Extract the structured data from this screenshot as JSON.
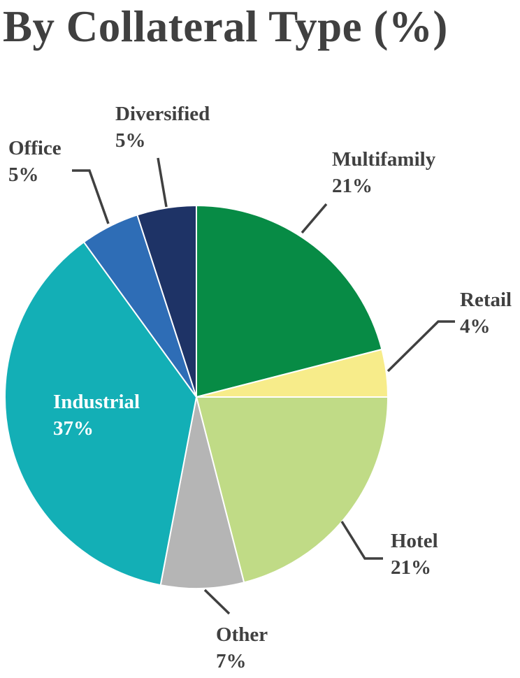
{
  "title": "By Collateral Type (%)",
  "chart_data": {
    "type": "pie",
    "title": "By Collateral Type (%)",
    "start": "12 o'clock, clockwise",
    "label_color": "#404040",
    "slices": [
      {
        "name": "Multifamily",
        "value": 21,
        "display": "21%",
        "color": "#078B45",
        "label_color": "#404040"
      },
      {
        "name": "Retail",
        "value": 4,
        "display": "4%",
        "color": "#F7EC8A",
        "label_color": "#404040"
      },
      {
        "name": "Hotel",
        "value": 21,
        "display": "21%",
        "color": "#C0DB86",
        "label_color": "#404040"
      },
      {
        "name": "Other",
        "value": 7,
        "display": "7%",
        "color": "#B5B5B5",
        "label_color": "#404040"
      },
      {
        "name": "Industrial",
        "value": 37,
        "display": "37%",
        "color": "#13AFB6",
        "label_color": "#FFFFFF"
      },
      {
        "name": "Office",
        "value": 5,
        "display": "5%",
        "color": "#2E6DB6",
        "label_color": "#404040"
      },
      {
        "name": "Diversified",
        "value": 5,
        "display": "5%",
        "color": "#1E3366",
        "label_color": "#404040"
      }
    ]
  }
}
